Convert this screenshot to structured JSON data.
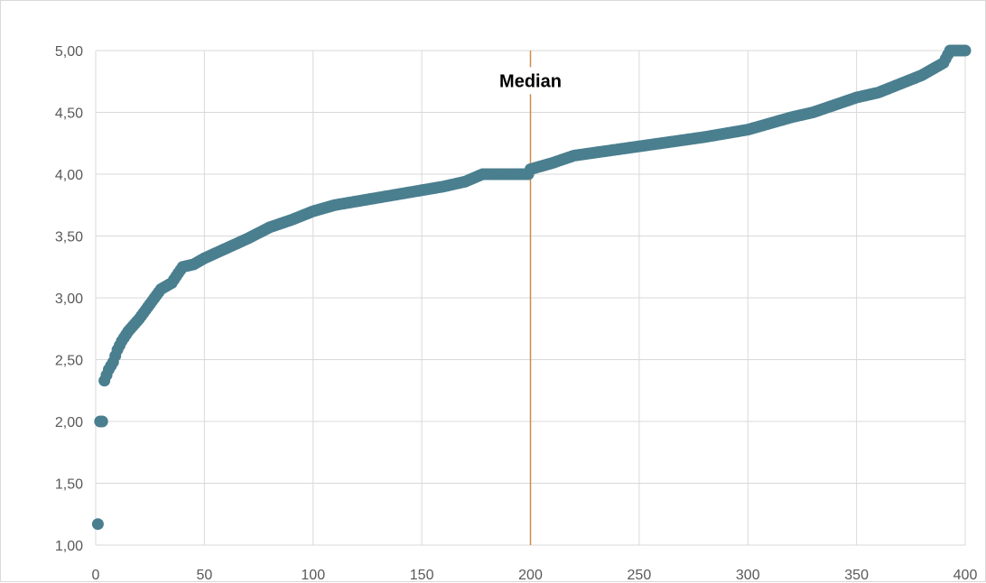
{
  "chart_data": {
    "type": "scatter",
    "title": "",
    "xlabel": "",
    "ylabel": "",
    "xlim": [
      0,
      400
    ],
    "ylim": [
      1.0,
      5.0
    ],
    "x_ticks": [
      "0",
      "50",
      "100",
      "150",
      "200",
      "250",
      "300",
      "350",
      "400"
    ],
    "y_ticks": [
      "1,00",
      "1,50",
      "2,00",
      "2,50",
      "3,00",
      "3,50",
      "4,00",
      "4,50",
      "5,00"
    ],
    "grid": true,
    "legend": "none",
    "marker_color": "#4a7f8f",
    "series": [
      {
        "anchors_x": [
          1,
          2,
          3,
          4,
          6,
          8,
          10,
          12,
          15,
          20,
          25,
          30,
          35,
          38,
          40,
          45,
          50,
          60,
          70,
          80,
          90,
          100,
          110,
          120,
          130,
          140,
          150,
          160,
          170,
          178,
          185,
          190,
          199,
          200,
          210,
          220,
          240,
          260,
          280,
          300,
          320,
          330,
          340,
          350,
          360,
          380,
          390,
          393,
          395,
          400
        ],
        "anchors_y": [
          1.17,
          2.0,
          2.0,
          2.33,
          2.42,
          2.48,
          2.58,
          2.65,
          2.73,
          2.83,
          2.95,
          3.07,
          3.12,
          3.2,
          3.25,
          3.27,
          3.32,
          3.4,
          3.48,
          3.57,
          3.63,
          3.7,
          3.75,
          3.78,
          3.81,
          3.84,
          3.87,
          3.9,
          3.94,
          4.0,
          4.0,
          4.0,
          4.0,
          4.04,
          4.09,
          4.15,
          4.2,
          4.25,
          4.3,
          4.36,
          4.46,
          4.5,
          4.56,
          4.62,
          4.66,
          4.8,
          4.9,
          5.0,
          5.0,
          5.0
        ]
      }
    ],
    "annotations": [
      {
        "x": 200,
        "text": "Median",
        "label_y": 4.72,
        "color": "#d08a4a"
      }
    ]
  }
}
